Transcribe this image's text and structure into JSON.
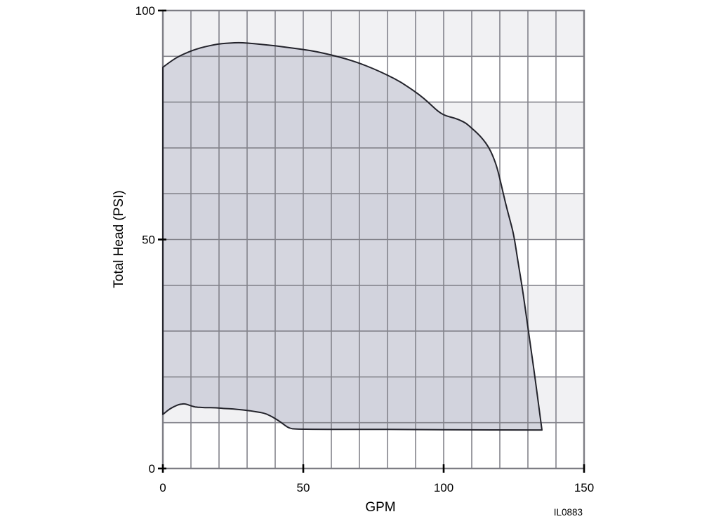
{
  "chart_data": {
    "type": "area",
    "title": "",
    "xlabel": "GPM",
    "ylabel": "Total Head (PSI)",
    "annotation": "IL0883",
    "xlim": [
      0,
      150
    ],
    "ylim": [
      0,
      100
    ],
    "xticks": [
      0,
      50,
      100,
      150
    ],
    "yticks": [
      0,
      50,
      100
    ],
    "x_grid_step": 10,
    "y_grid_step": 10,
    "grid": true,
    "legend": "none",
    "band_shading": "alternating horizontal 10-PSI bands, shaded on odd decades (10-20, 30-40, 50-60, 70-80, 90-100)",
    "series_name": "Pump operating envelope (shaded region of allowable GPM vs Total Head)",
    "envelope": {
      "upper": [
        [
          0,
          87.6
        ],
        [
          3,
          89.0
        ],
        [
          6,
          90.1
        ],
        [
          9,
          90.9
        ],
        [
          12,
          91.6
        ],
        [
          15,
          92.1
        ],
        [
          18,
          92.5
        ],
        [
          21,
          92.8
        ],
        [
          24,
          92.9
        ],
        [
          27,
          93.0
        ],
        [
          30,
          92.9
        ],
        [
          35,
          92.6
        ],
        [
          40,
          92.3
        ],
        [
          45,
          91.9
        ],
        [
          50,
          91.5
        ],
        [
          55,
          91.0
        ],
        [
          60,
          90.3
        ],
        [
          65,
          89.5
        ],
        [
          70,
          88.5
        ],
        [
          75,
          87.3
        ],
        [
          80,
          85.9
        ],
        [
          85,
          84.3
        ],
        [
          90,
          82.2
        ],
        [
          93,
          80.8
        ],
        [
          96,
          79.1
        ],
        [
          98,
          78.0
        ],
        [
          100,
          77.2
        ],
        [
          102,
          76.8
        ],
        [
          104,
          76.5
        ],
        [
          106,
          76.0
        ],
        [
          108,
          75.4
        ],
        [
          110,
          74.3
        ],
        [
          112,
          73.2
        ],
        [
          114,
          71.9
        ],
        [
          116,
          70.2
        ],
        [
          117.5,
          68.3
        ],
        [
          119,
          65.8
        ],
        [
          120.5,
          62.0
        ],
        [
          122,
          58.0
        ],
        [
          123.5,
          54.5
        ],
        [
          125,
          51.0
        ],
        [
          126.5,
          45.0
        ],
        [
          128,
          39.5
        ],
        [
          129.5,
          33.0
        ],
        [
          131,
          26.5
        ],
        [
          132.5,
          20.0
        ],
        [
          134,
          13.0
        ],
        [
          135,
          8.4
        ]
      ],
      "lower": [
        [
          0,
          11.8
        ],
        [
          1,
          12.3
        ],
        [
          2,
          12.8
        ],
        [
          3,
          13.2
        ],
        [
          4,
          13.5
        ],
        [
          5,
          13.8
        ],
        [
          6,
          14.0
        ],
        [
          7,
          14.1
        ],
        [
          8,
          14.1
        ],
        [
          9,
          13.9
        ],
        [
          10,
          13.7
        ],
        [
          11,
          13.5
        ],
        [
          12,
          13.4
        ],
        [
          14,
          13.3
        ],
        [
          16,
          13.3
        ],
        [
          18,
          13.3
        ],
        [
          20,
          13.2
        ],
        [
          22,
          13.1
        ],
        [
          25,
          13.0
        ],
        [
          28,
          12.8
        ],
        [
          30,
          12.7
        ],
        [
          32,
          12.5
        ],
        [
          34,
          12.3
        ],
        [
          36,
          12.1
        ],
        [
          38,
          11.6
        ],
        [
          40,
          10.9
        ],
        [
          42,
          10.1
        ],
        [
          43.5,
          9.4
        ],
        [
          45,
          8.8
        ],
        [
          47,
          8.6
        ],
        [
          55,
          8.55
        ],
        [
          70,
          8.55
        ],
        [
          90,
          8.5
        ],
        [
          110,
          8.45
        ],
        [
          125,
          8.4
        ],
        [
          135,
          8.4
        ]
      ]
    },
    "colors": {
      "region_fill": "rgba(203,204,215,0.8)",
      "region_stroke": "#23232b",
      "band_gray": "#f1f1f3",
      "band_white": "#ffffff",
      "gridline": "#83838b",
      "border": "#7d7d84",
      "tick": "#000000",
      "background": "#ffffff"
    }
  }
}
